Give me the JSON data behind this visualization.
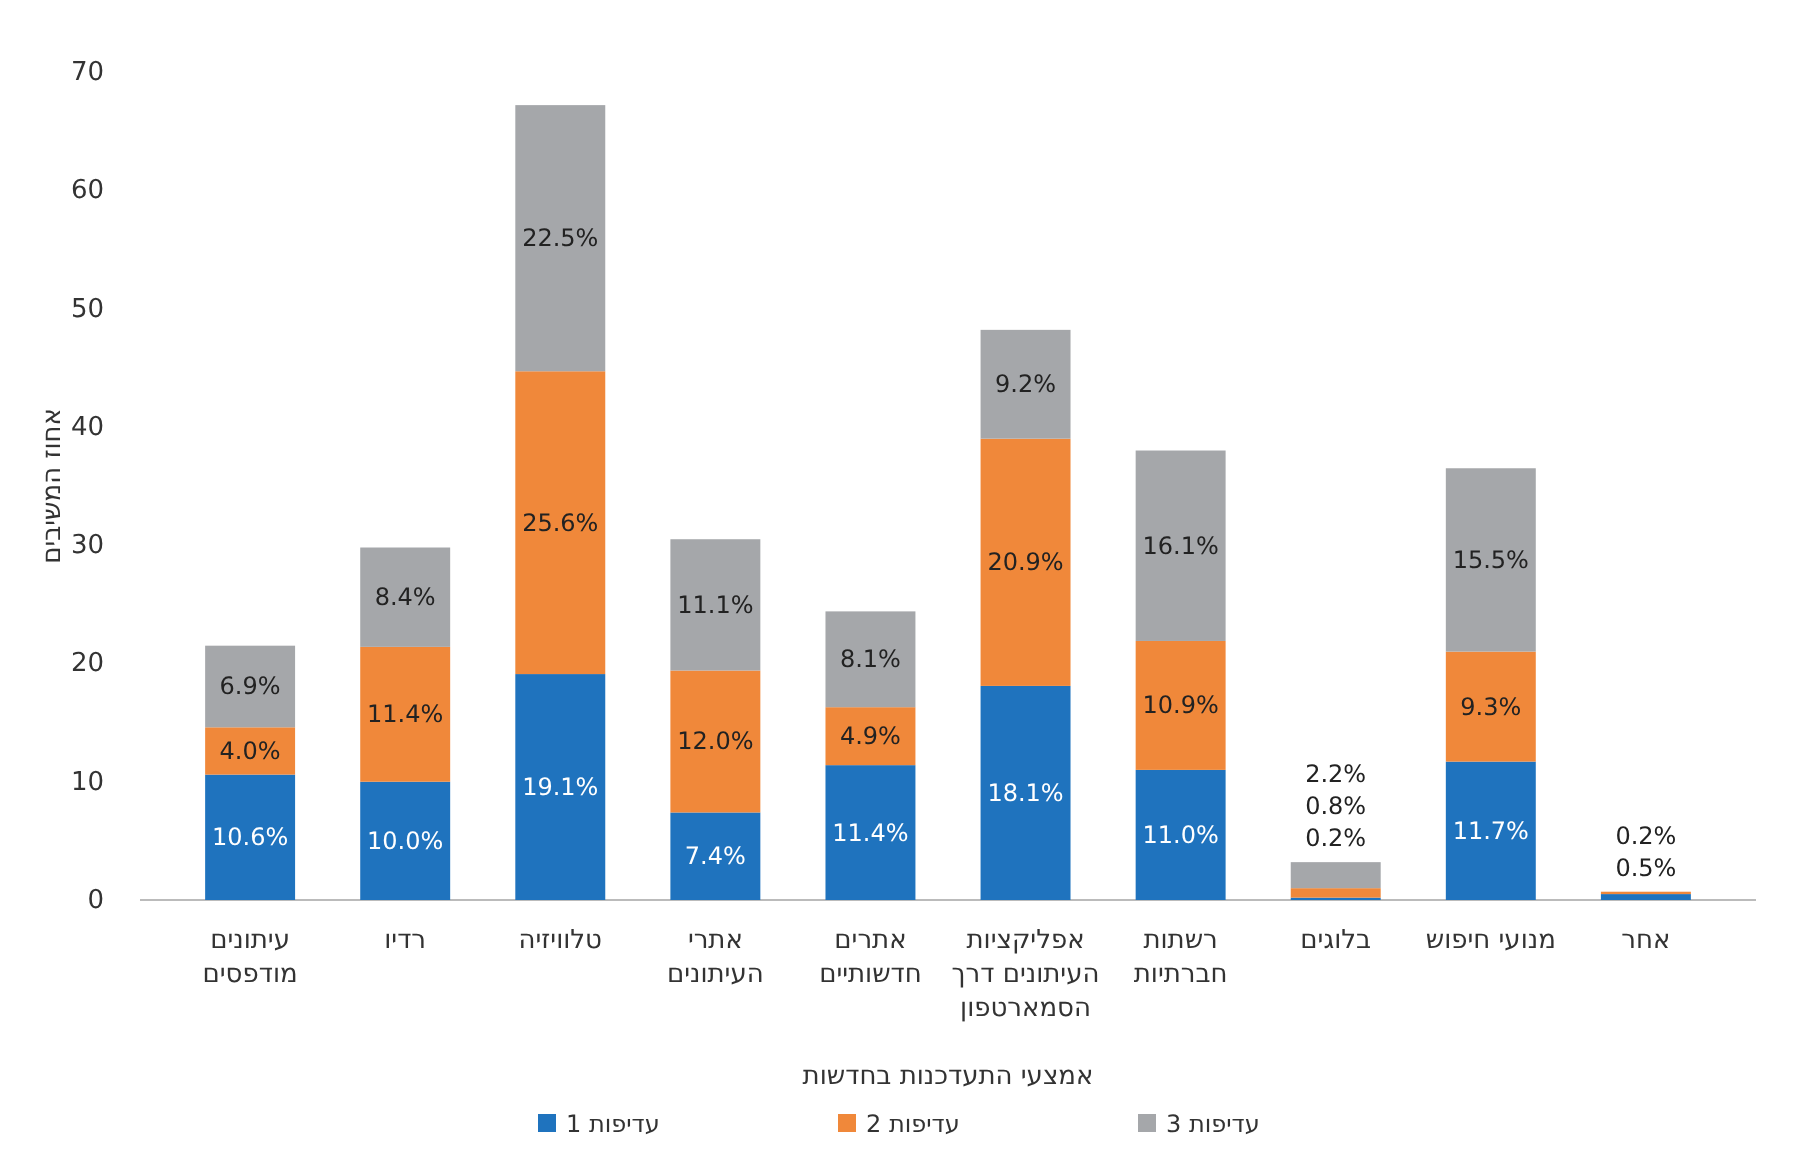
{
  "chart_data": {
    "type": "bar",
    "stacked": true,
    "xlabel": "אמצעי התעדכנות בחדשות",
    "ylabel": "אחוז המשיבים",
    "categories": [
      "עיתונים מודפסים",
      "רדיו",
      "טלוויזיה",
      "אתרי העיתונים",
      "אתרים חדשותיים",
      "אפליקציות העיתונים דרך הסמארטפון",
      "רשתות חברתיות",
      "בלוגים",
      "מנועי חיפוש",
      "אחר"
    ],
    "series": [
      {
        "name": "עדיפות 1",
        "color": "#1f73be",
        "values": [
          10.6,
          10.0,
          19.1,
          7.4,
          11.4,
          18.1,
          11.0,
          0.2,
          11.7,
          0.5
        ],
        "value_labels": [
          "10.6%",
          "10.0%",
          "19.1%",
          "7.4%",
          "11.4%",
          "18.1%",
          "11.0%",
          "0.2%",
          "11.7%",
          "0.5%"
        ]
      },
      {
        "name": "עדיפות 2",
        "color": "#f0883a",
        "values": [
          4.0,
          11.4,
          25.6,
          12.0,
          4.9,
          20.9,
          10.9,
          0.8,
          9.3,
          0.2
        ],
        "value_labels": [
          "4.0%",
          "11.4%",
          "25.6%",
          "12.0%",
          "4.9%",
          "20.9%",
          "10.9%",
          "0.8%",
          "9.3%",
          "0.2%"
        ]
      },
      {
        "name": "עדיפות 3",
        "color": "#a5a7aa",
        "values": [
          6.9,
          8.4,
          22.5,
          11.1,
          8.1,
          9.2,
          16.1,
          2.2,
          15.5,
          null
        ],
        "value_labels": [
          "6.9%",
          "8.4%",
          "22.5%",
          "11.1%",
          "8.1%",
          "9.2%",
          "16.1%",
          "2.2%",
          "15.5%",
          null
        ]
      }
    ],
    "ylim": [
      0,
      70
    ],
    "yticks": [
      0,
      10,
      20,
      30,
      40,
      50,
      60,
      70
    ],
    "grid": false,
    "legend": "bottom"
  }
}
